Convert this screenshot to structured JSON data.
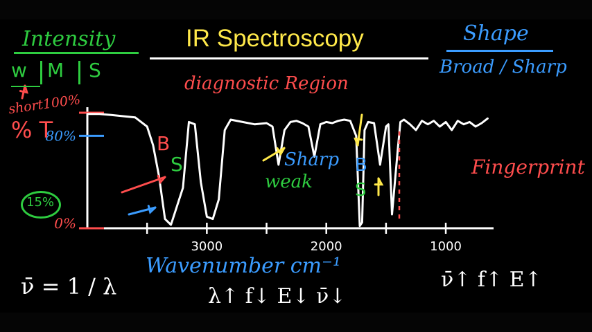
{
  "title": "IR Spectroscopy",
  "intensity": {
    "heading": "Intensity",
    "levels": [
      "w",
      "M",
      "S"
    ]
  },
  "shape": {
    "heading": "Shape",
    "options": "Broad / Sharp"
  },
  "region_label": "diagnostic Region",
  "fingerprint_label": "Fingerprint",
  "transmittance": {
    "short_label": "short100%",
    "percent_t": "% T",
    "level_15": "15%"
  },
  "annotations": {
    "sharp": "Sharp",
    "weak": "weak",
    "broad_letter_red": "B",
    "strong_letter_green": "S",
    "broad_letter_blue": "B",
    "strong_letter_green_2": "S"
  },
  "equations": {
    "nu_bar_def": "ν̄ = 1 / λ",
    "relations_left": "λ↑ f↓ E↓ ν̄↓",
    "relations_right": "ν̄↑ f↑ E↑"
  },
  "colors": {
    "background": "#000000",
    "spectrum": "#ffffff",
    "green": "#2ecc40",
    "red": "#ff4d4d",
    "blue": "#3b9cff",
    "yellow": "#ffe94a"
  },
  "chart_data": {
    "type": "line",
    "title": "IR Spectroscopy",
    "xlabel": "Wavenumber cm⁻¹",
    "ylabel": "%T",
    "x_reversed": true,
    "xlim": [
      4000,
      600
    ],
    "ylim": [
      0,
      100
    ],
    "x_tick_labels": [
      "3000",
      "2000",
      "1000"
    ],
    "x_ticks": [
      3000,
      2000,
      1000
    ],
    "y_tick_labels": [
      "0%",
      "80%",
      "100%"
    ],
    "y_ticks": [
      0,
      80,
      100
    ],
    "grid": false,
    "series": [
      {
        "x": [
          4000,
          3900,
          3800,
          3700,
          3600,
          3500,
          3450,
          3400,
          3350,
          3300,
          3200,
          3150,
          3100,
          3050,
          3000,
          2950,
          2900,
          2850,
          2800,
          2700,
          2600,
          2500,
          2450,
          2400,
          2350,
          2300,
          2250,
          2200,
          2150,
          2100,
          2050,
          2000,
          1950,
          1900,
          1850,
          1800,
          1750,
          1720,
          1700,
          1680,
          1650,
          1600,
          1550,
          1500,
          1480,
          1450,
          1400,
          1380,
          1350,
          1300,
          1250,
          1200,
          1150,
          1100,
          1050,
          1000,
          950,
          900,
          850,
          800,
          750,
          700,
          650
        ],
        "y": [
          99,
          99,
          98,
          97,
          96,
          88,
          72,
          45,
          8,
          3,
          35,
          92,
          90,
          40,
          10,
          8,
          25,
          85,
          94,
          92,
          90,
          91,
          88,
          55,
          85,
          92,
          93,
          91,
          88,
          62,
          90,
          92,
          91,
          93,
          94,
          93,
          80,
          2,
          5,
          85,
          92,
          91,
          55,
          88,
          90,
          12,
          70,
          92,
          94,
          90,
          85,
          93,
          90,
          93,
          88,
          92,
          85,
          93,
          90,
          92,
          88,
          91,
          95
        ]
      }
    ]
  }
}
